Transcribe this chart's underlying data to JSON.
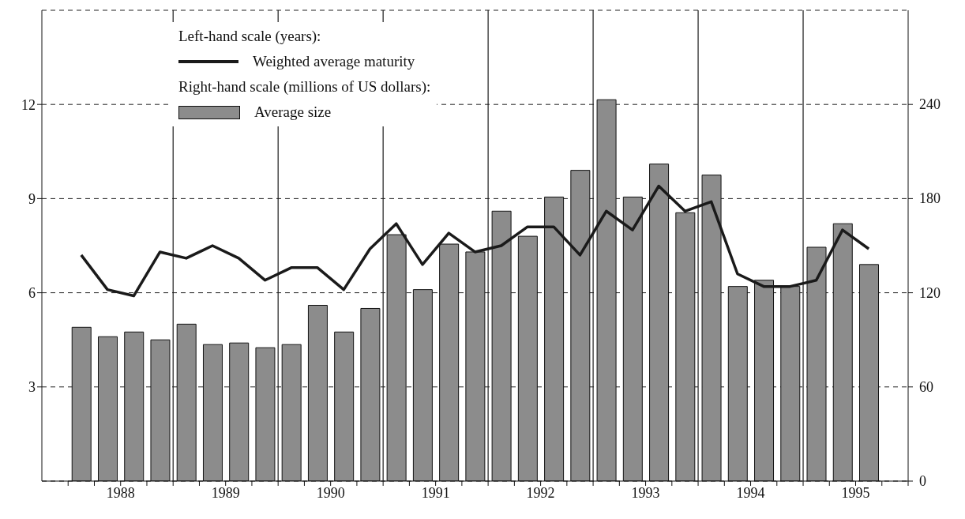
{
  "chart_data": {
    "type": "bar",
    "x": [
      1988.125,
      1988.375,
      1988.625,
      1988.875,
      1989.125,
      1989.375,
      1989.625,
      1989.875,
      1990.125,
      1990.375,
      1990.625,
      1990.875,
      1991.125,
      1991.375,
      1991.625,
      1991.875,
      1992.125,
      1992.375,
      1992.625,
      1992.875,
      1993.125,
      1993.375,
      1993.625,
      1993.875,
      1994.125,
      1994.375,
      1994.625,
      1994.875,
      1995.125,
      1995.375,
      1995.625
    ],
    "series": [
      {
        "name": "Weighted average maturity",
        "type": "line",
        "axis": "y",
        "color": "#1a1a1a",
        "values": [
          7.2,
          6.1,
          5.9,
          7.3,
          7.1,
          7.5,
          7.1,
          6.4,
          6.8,
          6.8,
          6.1,
          7.4,
          8.2,
          6.9,
          7.9,
          7.3,
          7.5,
          8.1,
          8.1,
          7.2,
          8.6,
          8.0,
          9.4,
          8.6,
          8.9,
          6.6,
          6.2,
          6.2,
          6.4,
          8.0,
          7.4
        ]
      },
      {
        "name": "Average size",
        "axis": "y2",
        "color": "#8c8c8c",
        "values": [
          98,
          92,
          95,
          90,
          100,
          87,
          88,
          85,
          87,
          112,
          95,
          110,
          157,
          122,
          151,
          146,
          172,
          156,
          181,
          198,
          243,
          181,
          202,
          171,
          195,
          124,
          128,
          124,
          149,
          164,
          138
        ]
      }
    ],
    "annotations": [
      "Left-hand scale (years):",
      "Right-hand scale (millions of US dollars):"
    ],
    "xlim": [
      1987.75,
      1996.0
    ],
    "xticks": [
      {
        "value": 1988,
        "label": null
      },
      {
        "value": 1988.25,
        "label": null
      },
      {
        "value": 1988.5,
        "label": "1988"
      },
      {
        "value": 1988.75,
        "label": null
      },
      {
        "value": 1989,
        "label": null
      },
      {
        "value": 1989.25,
        "label": null
      },
      {
        "value": 1989.5,
        "label": "1989"
      },
      {
        "value": 1989.75,
        "label": null
      },
      {
        "value": 1990,
        "label": null
      },
      {
        "value": 1990.25,
        "label": null
      },
      {
        "value": 1990.5,
        "label": "1990"
      },
      {
        "value": 1990.75,
        "label": null
      },
      {
        "value": 1991,
        "label": null
      },
      {
        "value": 1991.25,
        "label": null
      },
      {
        "value": 1991.5,
        "label": "1991"
      },
      {
        "value": 1991.75,
        "label": null
      },
      {
        "value": 1992,
        "label": null
      },
      {
        "value": 1992.25,
        "label": null
      },
      {
        "value": 1992.5,
        "label": "1992"
      },
      {
        "value": 1992.75,
        "label": null
      },
      {
        "value": 1993,
        "label": null
      },
      {
        "value": 1993.25,
        "label": null
      },
      {
        "value": 1993.5,
        "label": "1993"
      },
      {
        "value": 1993.75,
        "label": null
      },
      {
        "value": 1994,
        "label": null
      },
      {
        "value": 1994.25,
        "label": null
      },
      {
        "value": 1994.5,
        "label": "1994"
      },
      {
        "value": 1994.75,
        "label": null
      },
      {
        "value": 1995,
        "label": null
      },
      {
        "value": 1995.25,
        "label": null
      },
      {
        "value": 1995.5,
        "label": "1995"
      },
      {
        "value": 1995.75,
        "label": null
      },
      {
        "value": 1996,
        "label": null
      }
    ],
    "ylim": [
      0,
      15
    ],
    "yticks": [
      3,
      6,
      9,
      12
    ],
    "y2lim": [
      0,
      300
    ],
    "y2ticks": [
      0,
      60,
      120,
      180,
      240
    ],
    "ref_lines": [
      {
        "axis": "x",
        "value": 1989,
        "color": "#1a1a1a"
      },
      {
        "axis": "x",
        "value": 1990,
        "color": "#1a1a1a"
      },
      {
        "axis": "x",
        "value": 1991,
        "color": "#1a1a1a"
      },
      {
        "axis": "x",
        "value": 1992,
        "color": "#1a1a1a"
      },
      {
        "axis": "x",
        "value": 1993,
        "color": "#1a1a1a"
      },
      {
        "axis": "x",
        "value": 1994,
        "color": "#1a1a1a"
      },
      {
        "axis": "x",
        "value": 1995,
        "color": "#1a1a1a"
      }
    ],
    "grid": "y",
    "legend": "top left"
  }
}
